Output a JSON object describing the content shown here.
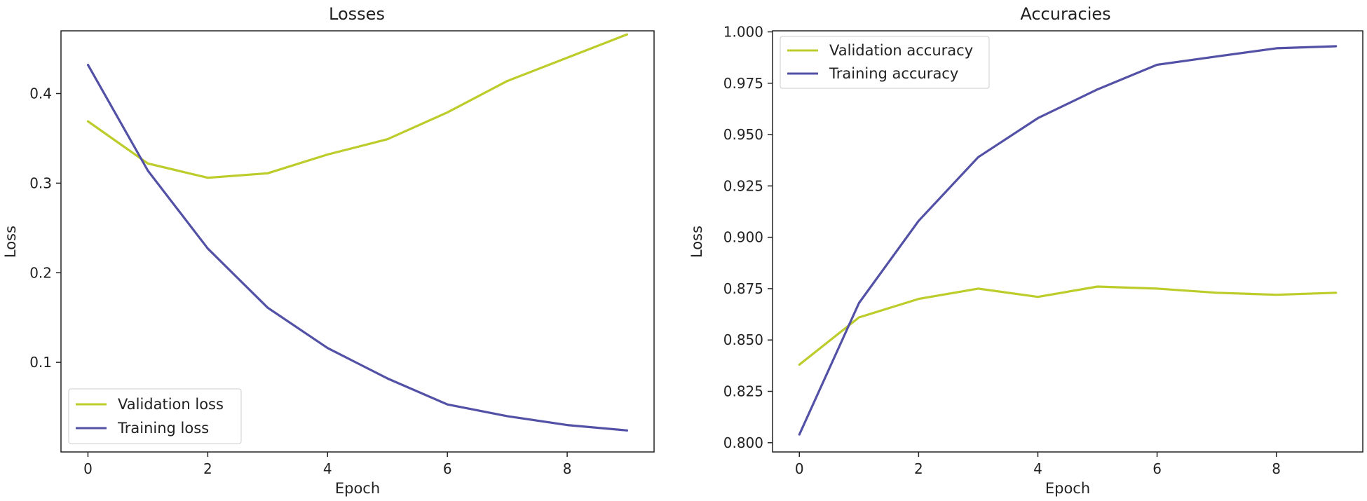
{
  "colors": {
    "validation": "#bccc2a",
    "training": "#5351a6",
    "axis": "#222222"
  },
  "chart_data": [
    {
      "type": "line",
      "title": "Losses",
      "xlabel": "Epoch",
      "ylabel": "Loss",
      "xlim": [
        -0.45,
        9.45
      ],
      "ylim": [
        0.0,
        0.47
      ],
      "xticks": [
        0,
        2,
        4,
        6,
        8
      ],
      "xtick_labels": [
        "0",
        "2",
        "4",
        "6",
        "8"
      ],
      "yticks": [
        0.1,
        0.2,
        0.3,
        0.4
      ],
      "ytick_labels": [
        "0.1",
        "0.2",
        "0.3",
        "0.4"
      ],
      "grid": false,
      "legend_position": "lower-left",
      "x": [
        0,
        1,
        2,
        3,
        4,
        5,
        6,
        7,
        8,
        9
      ],
      "series": [
        {
          "name": "Validation loss",
          "color": "#bccc2a",
          "values": [
            0.369,
            0.322,
            0.306,
            0.311,
            0.332,
            0.349,
            0.379,
            0.414,
            0.44,
            0.466
          ]
        },
        {
          "name": "Training loss",
          "color": "#5351a6",
          "values": [
            0.432,
            0.314,
            0.227,
            0.161,
            0.116,
            0.082,
            0.053,
            0.04,
            0.03,
            0.024
          ]
        }
      ]
    },
    {
      "type": "line",
      "title": "Accuracies",
      "xlabel": "Epoch",
      "ylabel": "Loss",
      "xlim": [
        -0.45,
        9.45
      ],
      "ylim": [
        0.7955,
        1.0005
      ],
      "xticks": [
        0,
        2,
        4,
        6,
        8
      ],
      "xtick_labels": [
        "0",
        "2",
        "4",
        "6",
        "8"
      ],
      "yticks": [
        0.8,
        0.825,
        0.85,
        0.875,
        0.9,
        0.925,
        0.95,
        0.975,
        1.0
      ],
      "ytick_labels": [
        "0.800",
        "0.825",
        "0.850",
        "0.875",
        "0.900",
        "0.925",
        "0.950",
        "0.975",
        "1.000"
      ],
      "grid": false,
      "legend_position": "upper-left",
      "x": [
        0,
        1,
        2,
        3,
        4,
        5,
        6,
        7,
        8,
        9
      ],
      "series": [
        {
          "name": "Validation accuracy",
          "color": "#bccc2a",
          "values": [
            0.838,
            0.861,
            0.87,
            0.875,
            0.871,
            0.876,
            0.875,
            0.873,
            0.872,
            0.873
          ]
        },
        {
          "name": "Training accuracy",
          "color": "#5351a6",
          "values": [
            0.804,
            0.868,
            0.908,
            0.939,
            0.958,
            0.972,
            0.984,
            0.988,
            0.992,
            0.993
          ]
        }
      ]
    }
  ]
}
